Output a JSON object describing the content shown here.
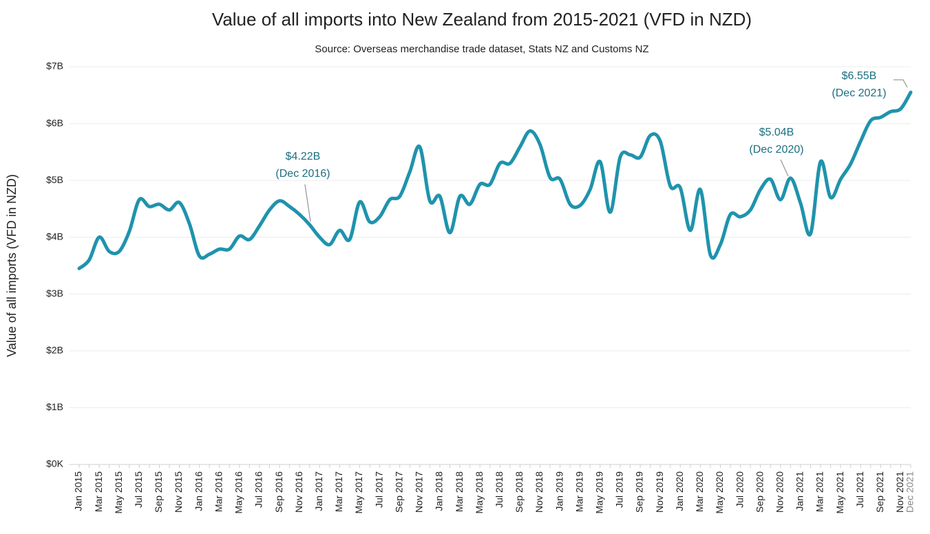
{
  "chart_data": {
    "type": "line",
    "title": "Value of all imports into New Zealand from 2015-2021 (VFD in NZD)",
    "subtitle": "Source: Overseas merchandise trade dataset, Stats NZ and Customs NZ",
    "y_label": "Value of all imports (VFD in NZD)",
    "categories": [
      "Jan 2015",
      null,
      "Mar 2015",
      null,
      "May 2015",
      null,
      "Jul 2015",
      null,
      "Sep 2015",
      null,
      "Nov 2015",
      null,
      "Jan 2016",
      null,
      "Mar 2016",
      null,
      "May 2016",
      null,
      "Jul 2016",
      null,
      "Sep 2016",
      null,
      "Nov 2016",
      null,
      "Jan 2017",
      null,
      "Mar 2017",
      null,
      "May 2017",
      null,
      "Jul 2017",
      null,
      "Sep 2017",
      null,
      "Nov 2017",
      null,
      "Jan 2018",
      null,
      "Mar 2018",
      null,
      "May 2018",
      null,
      "Jul 2018",
      null,
      "Sep 2018",
      null,
      "Nov 2018",
      null,
      "Jan 2019",
      null,
      "Mar 2019",
      null,
      "May 2019",
      null,
      "Jul 2019",
      null,
      "Sep 2019",
      null,
      "Nov 2019",
      null,
      "Jan 2020",
      null,
      "Mar 2020",
      null,
      "May 2020",
      null,
      "Jul 2020",
      null,
      "Sep 2020",
      null,
      "Nov 2020",
      null,
      "Jan 2021",
      null,
      "Mar 2021",
      null,
      "May 2021",
      null,
      "Jul 2021",
      null,
      "Sep 2021",
      null,
      "Nov 2021",
      "Dec 2021"
    ],
    "series": [
      {
        "name": "Value of all imports",
        "color": "#1f93ad",
        "values": [
          3450000000.0,
          3600000000.0,
          4000000000.0,
          3750000000.0,
          3750000000.0,
          4100000000.0,
          4660000000.0,
          4540000000.0,
          4580000000.0,
          4480000000.0,
          4610000000.0,
          4240000000.0,
          3670000000.0,
          3700000000.0,
          3790000000.0,
          3790000000.0,
          4020000000.0,
          3960000000.0,
          4200000000.0,
          4480000000.0,
          4640000000.0,
          4540000000.0,
          4400000000.0,
          4220000000.0,
          4000000000.0,
          3870000000.0,
          4120000000.0,
          3960000000.0,
          4620000000.0,
          4270000000.0,
          4360000000.0,
          4660000000.0,
          4720000000.0,
          5150000000.0,
          5590000000.0,
          4640000000.0,
          4720000000.0,
          4080000000.0,
          4720000000.0,
          4580000000.0,
          4930000000.0,
          4930000000.0,
          5300000000.0,
          5300000000.0,
          5590000000.0,
          5870000000.0,
          5630000000.0,
          5050000000.0,
          5020000000.0,
          4580000000.0,
          4560000000.0,
          4840000000.0,
          5330000000.0,
          4440000000.0,
          5410000000.0,
          5450000000.0,
          5410000000.0,
          5790000000.0,
          5690000000.0,
          4900000000.0,
          4870000000.0,
          4120000000.0,
          4840000000.0,
          3690000000.0,
          3870000000.0,
          4400000000.0,
          4360000000.0,
          4480000000.0,
          4840000000.0,
          5020000000.0,
          4660000000.0,
          5040000000.0,
          4600000000.0,
          4060000000.0,
          5330000000.0,
          4700000000.0,
          5020000000.0,
          5290000000.0,
          5690000000.0,
          6050000000.0,
          6110000000.0,
          6210000000.0,
          6260000000.0,
          6550000000.0
        ]
      }
    ],
    "ylim": [
      0,
      7000000000.0
    ],
    "yticks": [
      {
        "value": 0,
        "label": "$0K"
      },
      {
        "value": 1000000000.0,
        "label": "$1B"
      },
      {
        "value": 2000000000.0,
        "label": "$2B"
      },
      {
        "value": 3000000000.0,
        "label": "$3B"
      },
      {
        "value": 4000000000.0,
        "label": "$4B"
      },
      {
        "value": 5000000000.0,
        "label": "$5B"
      },
      {
        "value": 6000000000.0,
        "label": "$6B"
      },
      {
        "value": 7000000000.0,
        "label": "$7B"
      }
    ],
    "grid": true,
    "annotations": [
      {
        "value": "$4.22B",
        "date": "(Dec 2016)"
      },
      {
        "value": "$5.04B",
        "date": "(Dec 2020)"
      },
      {
        "value": "$6.55B",
        "date": "(Dec 2021)"
      }
    ]
  }
}
